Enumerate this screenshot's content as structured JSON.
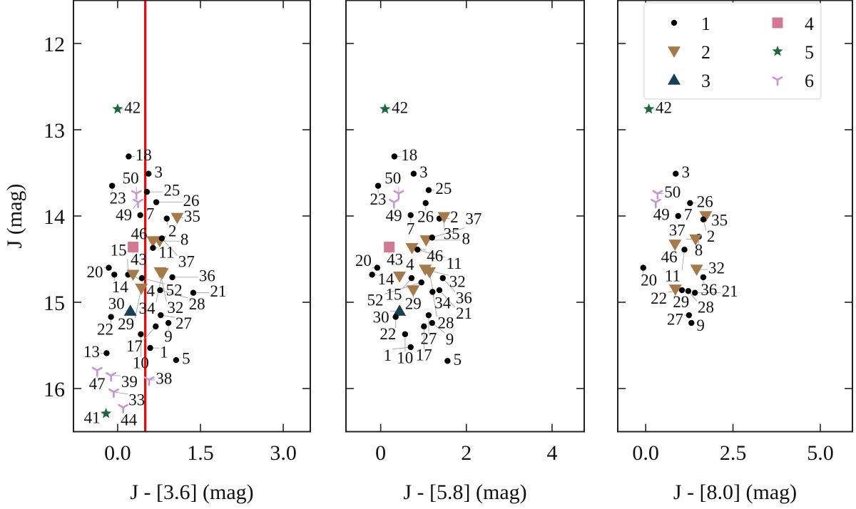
{
  "chart_data": [
    {
      "type": "scatter",
      "xlabel": "J - [3.6] (mag)",
      "ylabel": "J (mag)",
      "xlim": [
        -0.8,
        3.49
      ],
      "ylim": [
        16.5,
        11.5
      ],
      "xticks": [
        "0.0",
        "1.5",
        "3.0"
      ],
      "xtick_values": [
        0,
        1.5,
        3.0
      ],
      "yticks": [
        "12",
        "13",
        "14",
        "15",
        "16"
      ],
      "ytick_values": [
        12,
        13,
        14,
        15,
        16
      ],
      "vline": {
        "x": 0.5,
        "color": "#ff0000"
      },
      "points": [
        [
          "42",
          5,
          0.0,
          12.76
        ],
        [
          "18",
          1,
          0.2,
          13.31
        ],
        [
          "3",
          1,
          0.56,
          13.51
        ],
        [
          "23",
          1,
          -0.1,
          13.65
        ],
        [
          "50",
          6,
          0.34,
          13.74
        ],
        [
          "25",
          1,
          0.53,
          13.72
        ],
        [
          "49",
          6,
          0.37,
          13.84
        ],
        [
          "26",
          1,
          0.7,
          13.84
        ],
        [
          "7",
          1,
          0.41,
          13.99
        ],
        [
          "2",
          1,
          0.89,
          14.03
        ],
        [
          "35",
          2,
          1.08,
          14.02
        ],
        [
          "43",
          4,
          0.28,
          14.36
        ],
        [
          "46",
          2,
          0.64,
          14.29
        ],
        [
          "11",
          1,
          0.64,
          14.37
        ],
        [
          "8",
          2,
          0.76,
          14.29
        ],
        [
          "37",
          1,
          0.8,
          14.26
        ],
        [
          "20",
          1,
          -0.16,
          14.6
        ],
        [
          "14",
          1,
          -0.06,
          14.68
        ],
        [
          "15",
          1,
          0.19,
          14.68
        ],
        [
          "4",
          2,
          0.28,
          14.68
        ],
        [
          "52",
          1,
          0.44,
          14.72
        ],
        [
          "32",
          2,
          0.77,
          14.65
        ],
        [
          "34",
          2,
          0.81,
          14.66
        ],
        [
          "36",
          1,
          0.99,
          14.71
        ],
        [
          "28",
          1,
          0.77,
          14.86
        ],
        [
          "29",
          2,
          0.43,
          14.84
        ],
        [
          "21",
          1,
          1.37,
          14.89
        ],
        [
          "30",
          3,
          0.23,
          15.1
        ],
        [
          "22",
          1,
          -0.12,
          15.17
        ],
        [
          "27",
          1,
          0.78,
          15.15
        ],
        [
          "9",
          1,
          0.92,
          15.24
        ],
        [
          "17",
          1,
          0.69,
          15.28
        ],
        [
          "10",
          1,
          0.42,
          15.37
        ],
        [
          "1",
          1,
          0.59,
          15.53
        ],
        [
          "13",
          1,
          -0.2,
          15.59
        ],
        [
          "5",
          1,
          1.06,
          15.67
        ],
        [
          "47",
          6,
          -0.37,
          15.79
        ],
        [
          "39",
          6,
          -0.12,
          15.85
        ],
        [
          "38",
          6,
          0.57,
          15.9
        ],
        [
          "33",
          6,
          -0.07,
          16.04
        ],
        [
          "44",
          6,
          0.1,
          16.22
        ],
        [
          "41",
          5,
          -0.21,
          16.29
        ]
      ]
    },
    {
      "type": "scatter",
      "xlabel": "J - [5.8] (mag)",
      "xlim": [
        -0.81,
        4.75
      ],
      "ylim": [
        16.5,
        11.5
      ],
      "xticks": [
        "0",
        "2",
        "4"
      ],
      "xtick_values": [
        0,
        2,
        4
      ],
      "ytick_values": [
        12,
        13,
        14,
        15,
        16
      ],
      "points": [
        [
          "42",
          5,
          0.1,
          12.76
        ],
        [
          "18",
          1,
          0.32,
          13.31
        ],
        [
          "3",
          1,
          0.77,
          13.51
        ],
        [
          "23",
          1,
          -0.06,
          13.65
        ],
        [
          "50",
          6,
          0.42,
          13.74
        ],
        [
          "25",
          1,
          1.12,
          13.7
        ],
        [
          "49",
          6,
          0.31,
          13.84
        ],
        [
          "26",
          1,
          1.05,
          13.85
        ],
        [
          "7",
          1,
          0.7,
          13.99
        ],
        [
          "2",
          1,
          1.37,
          14.03
        ],
        [
          "35",
          2,
          1.48,
          14.01
        ],
        [
          "43",
          4,
          0.2,
          14.36
        ],
        [
          "46",
          2,
          0.73,
          14.37
        ],
        [
          "11",
          1,
          0.86,
          14.39
        ],
        [
          "8",
          2,
          1.06,
          14.28
        ],
        [
          "37",
          1,
          1.2,
          14.25
        ],
        [
          "20",
          1,
          -0.08,
          14.6
        ],
        [
          "14",
          1,
          -0.2,
          14.68
        ],
        [
          "4",
          2,
          0.44,
          14.7
        ],
        [
          "15",
          1,
          0.72,
          14.72
        ],
        [
          "32",
          2,
          1.04,
          14.62
        ],
        [
          "34",
          2,
          1.14,
          14.65
        ],
        [
          "36",
          1,
          1.45,
          14.72
        ],
        [
          "52",
          1,
          0.95,
          14.77
        ],
        [
          "29",
          2,
          0.76,
          14.86
        ],
        [
          "28",
          1,
          1.21,
          14.88
        ],
        [
          "21",
          1,
          1.37,
          14.86
        ],
        [
          "30",
          3,
          0.44,
          15.1
        ],
        [
          "22",
          1,
          0.35,
          15.17
        ],
        [
          "27",
          1,
          1.12,
          15.15
        ],
        [
          "9",
          1,
          1.2,
          15.24
        ],
        [
          "17",
          1,
          1.01,
          15.28
        ],
        [
          "10",
          1,
          0.57,
          15.37
        ],
        [
          "1",
          1,
          0.7,
          15.52
        ],
        [
          "5",
          1,
          1.56,
          15.68
        ]
      ]
    },
    {
      "type": "scatter",
      "xlabel": "J - [8.0] (mag)",
      "xlim": [
        -0.8,
        5.92
      ],
      "ylim": [
        16.5,
        11.5
      ],
      "xticks": [
        "0.0",
        "2.5",
        "5.0"
      ],
      "xtick_values": [
        0,
        2.5,
        5.0
      ],
      "ytick_values": [
        12,
        13,
        14,
        15,
        16
      ],
      "legend": {
        "position": "top-right",
        "entries": [
          "1",
          "2",
          "3",
          "4",
          "5",
          "6"
        ]
      },
      "points": [
        [
          "42",
          5,
          0.09,
          12.76
        ],
        [
          "3",
          1,
          0.86,
          13.51
        ],
        [
          "50",
          6,
          0.34,
          13.74
        ],
        [
          "49",
          6,
          0.29,
          13.84
        ],
        [
          "26",
          1,
          1.27,
          13.85
        ],
        [
          "7",
          1,
          0.93,
          14.0
        ],
        [
          "35",
          2,
          1.72,
          14.0
        ],
        [
          "2",
          1,
          1.65,
          14.04
        ],
        [
          "8",
          1,
          1.52,
          14.24
        ],
        [
          "37",
          2,
          1.43,
          14.27
        ],
        [
          "46",
          2,
          0.84,
          14.33
        ],
        [
          "11",
          1,
          1.11,
          14.39
        ],
        [
          "20",
          1,
          -0.07,
          14.6
        ],
        [
          "32",
          2,
          1.46,
          14.62
        ],
        [
          "36",
          1,
          1.65,
          14.71
        ],
        [
          "29",
          2,
          0.85,
          14.85
        ],
        [
          "22",
          1,
          1.04,
          14.86
        ],
        [
          "28",
          1,
          1.22,
          14.87
        ],
        [
          "21",
          1,
          1.41,
          14.89
        ],
        [
          "27",
          1,
          1.24,
          15.15
        ],
        [
          "9",
          1,
          1.31,
          15.24
        ]
      ]
    }
  ],
  "classes": {
    "1": {
      "marker": "circle",
      "color": "#000000"
    },
    "2": {
      "marker": "triangle-down",
      "color": "#a57a48"
    },
    "3": {
      "marker": "triangle-up",
      "color": "#173f55"
    },
    "4": {
      "marker": "square",
      "color": "#d27a92"
    },
    "5": {
      "marker": "star",
      "color": "#1b6840"
    },
    "6": {
      "marker": "tri-y",
      "color": "#c894d8"
    }
  }
}
